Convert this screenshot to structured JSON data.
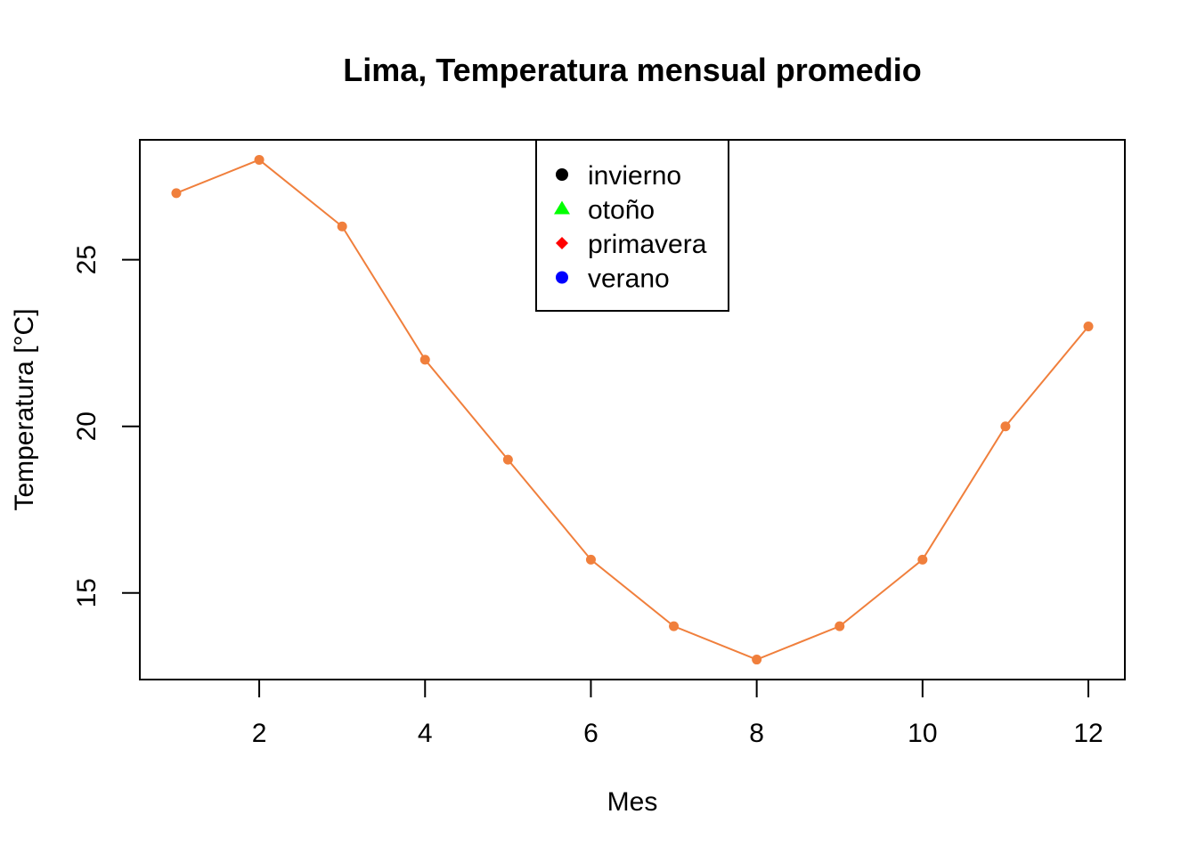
{
  "chart_data": {
    "type": "line",
    "title": "Lima, Temperatura mensual promedio",
    "xlabel": "Mes",
    "ylabel": "Temperatura [°C]",
    "x": [
      1,
      2,
      3,
      4,
      5,
      6,
      7,
      8,
      9,
      10,
      11,
      12
    ],
    "xlim": [
      0.56,
      12.44
    ],
    "ylim": [
      12.4,
      28.6
    ],
    "x_ticks": [
      2,
      4,
      6,
      8,
      10,
      12
    ],
    "y_ticks": [
      15,
      20,
      25
    ],
    "series": [
      {
        "values": [
          27,
          28,
          26,
          22,
          19,
          16,
          14,
          13,
          14,
          16,
          20,
          23
        ],
        "color": "#F07F3C",
        "marker": "circle"
      }
    ],
    "legend": {
      "placement": "top",
      "entries": [
        {
          "label": "invierno",
          "color": "#000000",
          "marker": "circle"
        },
        {
          "label": "otoño",
          "color": "#00FF00",
          "marker": "triangle"
        },
        {
          "label": "primavera",
          "color": "#FF0000",
          "marker": "diamond"
        },
        {
          "label": "verano",
          "color": "#0000FF",
          "marker": "circle"
        }
      ]
    },
    "grid": false
  }
}
